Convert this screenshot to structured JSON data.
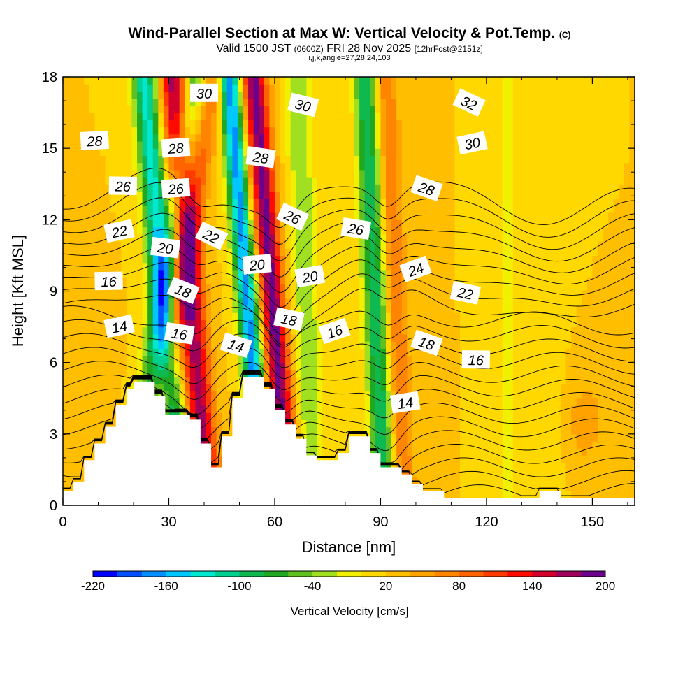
{
  "title": {
    "main": "Wind-Parallel Section at Max W: Vertical Velocity & Pot.Temp.",
    "main_suffix": "(C)",
    "valid_a": "Valid 1500 JST",
    "valid_b": "(0600Z)",
    "valid_c": "FRI 28 Nov 2025",
    "valid_d": "[12hrFcst@2151z]",
    "grid": "i,j,k,angle=27,28,24,103"
  },
  "chart_data": {
    "type": "heatmap",
    "xlabel": "Distance [nm]",
    "ylabel": "Height [Kft MSL]",
    "xlim": [
      0,
      162
    ],
    "ylim": [
      0,
      18
    ],
    "x_ticks": [
      "0",
      "30",
      "60",
      "90",
      "120",
      "150"
    ],
    "y_ticks": [
      "0",
      "3",
      "6",
      "9",
      "12",
      "15",
      "18"
    ],
    "colorbar": {
      "label": "Vertical Velocity [cm/s]",
      "range": [
        -220,
        200
      ],
      "step": 20,
      "tick_labels": [
        "-220",
        "-160",
        "-100",
        "-40",
        "20",
        "80",
        "140",
        "200"
      ],
      "colors": [
        "#0000ff",
        "#0050ff",
        "#0090ff",
        "#00c8ff",
        "#00e8d0",
        "#00d090",
        "#10b850",
        "#20a820",
        "#60c020",
        "#a0e020",
        "#f0f000",
        "#ffd800",
        "#ffbe00",
        "#ffa200",
        "#ff8400",
        "#ff6400",
        "#ff3c00",
        "#ff0a00",
        "#d2002a",
        "#a0005a",
        "#6a008c"
      ]
    },
    "terrain_kft": [
      [
        0,
        0.6
      ],
      [
        3,
        0.6
      ],
      [
        3,
        1
      ],
      [
        6,
        1
      ],
      [
        6,
        1.9
      ],
      [
        9,
        1.9
      ],
      [
        9,
        2.6
      ],
      [
        12,
        2.6
      ],
      [
        12,
        3.3
      ],
      [
        15,
        3.3
      ],
      [
        15,
        4.2
      ],
      [
        18,
        4.2
      ],
      [
        18,
        4.9
      ],
      [
        20,
        4.9
      ],
      [
        20,
        5.2
      ],
      [
        26,
        5.2
      ],
      [
        26,
        4.6
      ],
      [
        29,
        4.6
      ],
      [
        29,
        3.8
      ],
      [
        36,
        3.8
      ],
      [
        36,
        3.6
      ],
      [
        39,
        3.6
      ],
      [
        39,
        2.6
      ],
      [
        42,
        2.6
      ],
      [
        42,
        1.6
      ],
      [
        45,
        1.6
      ],
      [
        45,
        2.9
      ],
      [
        48,
        2.9
      ],
      [
        48,
        4.5
      ],
      [
        51,
        4.5
      ],
      [
        51,
        5.4
      ],
      [
        57,
        5.4
      ],
      [
        57,
        4.9
      ],
      [
        60,
        4.9
      ],
      [
        60,
        4
      ],
      [
        63,
        4
      ],
      [
        63,
        3.4
      ],
      [
        66,
        3.4
      ],
      [
        66,
        2.8
      ],
      [
        69,
        2.8
      ],
      [
        69,
        2.1
      ],
      [
        72,
        2.1
      ],
      [
        72,
        1.9
      ],
      [
        78,
        1.9
      ],
      [
        78,
        2.2
      ],
      [
        81,
        2.2
      ],
      [
        81,
        2.9
      ],
      [
        87,
        2.9
      ],
      [
        87,
        2.2
      ],
      [
        90,
        2.2
      ],
      [
        90,
        1.6
      ],
      [
        96,
        1.6
      ],
      [
        96,
        1.3
      ],
      [
        99,
        1.3
      ],
      [
        99,
        0.9
      ],
      [
        102,
        0.9
      ],
      [
        102,
        0.6
      ],
      [
        108,
        0.6
      ],
      [
        108,
        0.3
      ],
      [
        135,
        0.3
      ],
      [
        135,
        0.6
      ],
      [
        141,
        0.6
      ],
      [
        141,
        0.3
      ],
      [
        162,
        0.3
      ]
    ],
    "w_bands": [
      {
        "x0": 19,
        "slope": 1.0,
        "width": 3.2,
        "w": -80
      },
      {
        "x0": 25,
        "slope": 1.0,
        "width": 3.0,
        "w": 60
      },
      {
        "x0": 33,
        "slope": -0.55,
        "width": 3.5,
        "w": -150
      },
      {
        "x0": 41,
        "slope": -0.55,
        "width": 3.8,
        "w": 150
      },
      {
        "x0": 57,
        "slope": -0.55,
        "width": 3.0,
        "w": -190
      },
      {
        "x0": 64,
        "slope": -0.55,
        "width": 3.4,
        "w": 170
      },
      {
        "x0": 71,
        "slope": -0.25,
        "width": 3.5,
        "w": -60
      },
      {
        "x0": 91,
        "slope": -0.3,
        "width": 3.2,
        "w": -120
      },
      {
        "x0": 97,
        "slope": -0.3,
        "width": 3.0,
        "w": 60
      },
      {
        "x0": 126,
        "slope": 0.0,
        "width": 2.5,
        "w": -40
      },
      {
        "x0": 137,
        "slope": 0.0,
        "width": 4.0,
        "w": -20
      }
    ],
    "w_background": 20,
    "theta_contours": [
      {
        "value": 14,
        "label": "14",
        "label_pos": [
          [
            16,
            7.5
          ],
          [
            49,
            6.7
          ],
          [
            97,
            4.3
          ]
        ]
      },
      {
        "value": 16,
        "label": "16",
        "label_pos": [
          [
            13,
            9.4
          ],
          [
            33,
            7.2
          ],
          [
            77,
            7.3
          ],
          [
            117,
            6.1
          ]
        ]
      },
      {
        "value": 18,
        "label": "18",
        "label_pos": [
          [
            34,
            9.0
          ],
          [
            64,
            7.8
          ],
          [
            103,
            6.8
          ]
        ]
      },
      {
        "value": 20,
        "label": "20",
        "label_pos": [
          [
            29,
            10.8
          ],
          [
            55,
            10.1
          ],
          [
            70,
            9.6
          ]
        ]
      },
      {
        "value": 22,
        "label": "22",
        "label_pos": [
          [
            16,
            11.5
          ],
          [
            42,
            11.3
          ],
          [
            114,
            8.9
          ]
        ]
      },
      {
        "value": 24,
        "label": "24",
        "label_pos": [
          [
            100,
            9.9
          ]
        ]
      },
      {
        "value": 26,
        "label": "26",
        "label_pos": [
          [
            17,
            13.4
          ],
          [
            32,
            13.3
          ],
          [
            65,
            12.1
          ],
          [
            83,
            11.6
          ]
        ]
      },
      {
        "value": 28,
        "label": "28",
        "label_pos": [
          [
            9,
            15.3
          ],
          [
            32,
            15.0
          ],
          [
            56,
            14.6
          ],
          [
            103,
            13.3
          ]
        ]
      },
      {
        "value": 30,
        "label": "30",
        "label_pos": [
          [
            40,
            17.3
          ],
          [
            68,
            16.8
          ],
          [
            116,
            15.2
          ]
        ]
      },
      {
        "value": 32,
        "label": "32",
        "label_pos": [
          [
            115,
            16.9
          ]
        ]
      }
    ]
  }
}
